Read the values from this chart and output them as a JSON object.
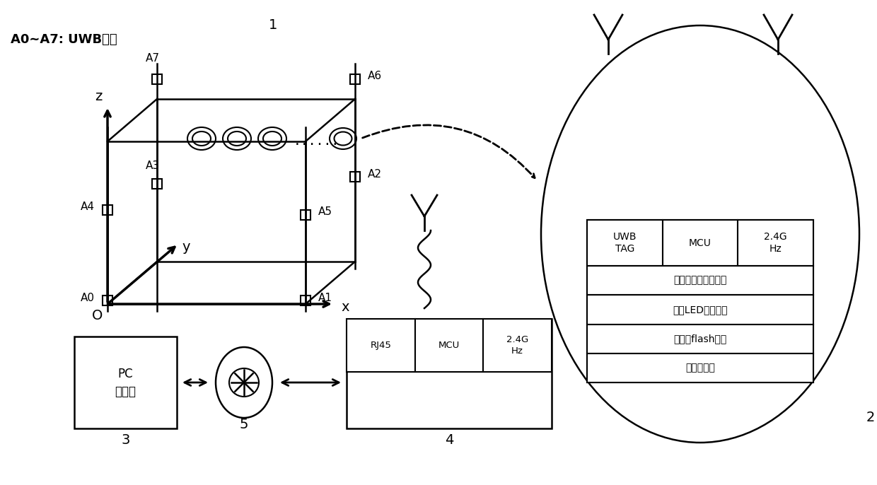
{
  "bg_color": "#ffffff",
  "line_color": "#000000",
  "label_anchor": "A0~A7: UWB锁点",
  "label_1": "1",
  "label_2": "2",
  "label_3": "3",
  "label_4": "4",
  "label_5": "5",
  "uwb_top_row": [
    "UWB\nTAG",
    "MCU",
    "2.4G\nHz"
  ],
  "uwb_lower_rows": [
    "陀螺仪加速度传感器",
    "全彩LED调光模块",
    "大容量flash存储",
    "电机驱动器"
  ],
  "box3_label": "PC\n服务器",
  "box4_row": [
    "RJ45",
    "MCU",
    "2.4G\nHz"
  ]
}
